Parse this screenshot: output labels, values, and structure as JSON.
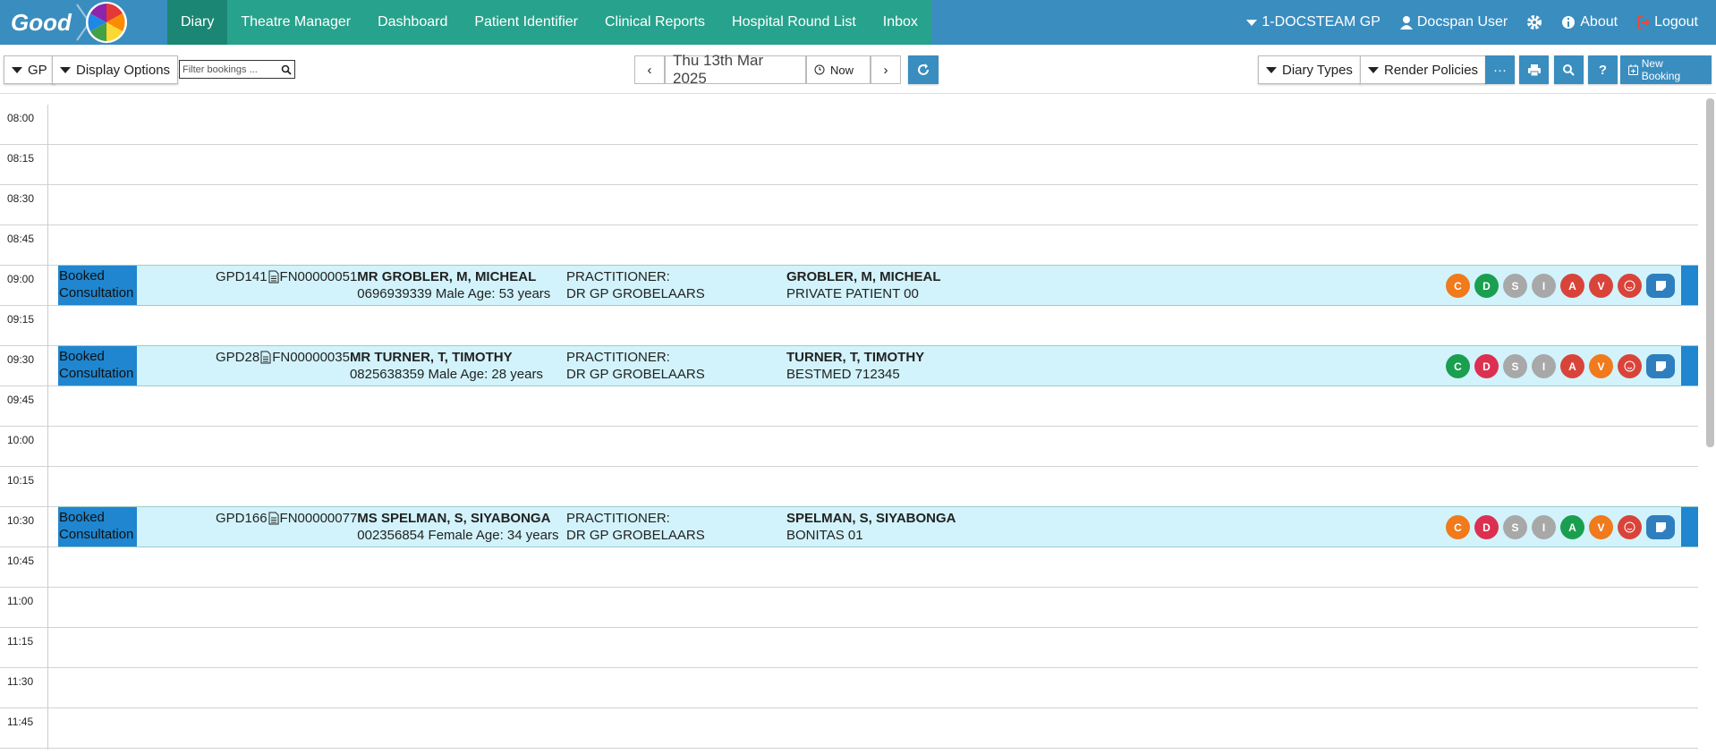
{
  "nav": {
    "logo": "Good",
    "tabs": [
      "Diary",
      "Theatre Manager",
      "Dashboard",
      "Patient Identifier",
      "Clinical Reports",
      "Hospital Round List",
      "Inbox"
    ],
    "practice": "1-DOCSTEAM GP",
    "user": "Docspan User",
    "about": "About",
    "logout": "Logout"
  },
  "toolbar": {
    "gp": "GP",
    "display_options": "Display Options",
    "filter_placeholder": "Filter bookings ...",
    "date": "Thu 13th Mar 2025",
    "now": "Now",
    "diary_types": "Diary Types",
    "render_policies": "Render Policies",
    "new_booking": "New Booking"
  },
  "diary": {
    "slots": [
      {
        "time": "08:00"
      },
      {
        "time": "08:15"
      },
      {
        "time": "08:30"
      },
      {
        "time": "08:45"
      },
      {
        "time": "09:00",
        "booking": {
          "status": "Booked Consultation",
          "ref": "GPD141",
          "file": "FN00000051",
          "name": "MR GROBLER, M, MICHEAL",
          "details": "0696939339 Male Age: 53 years",
          "practitioner_label": "PRACTITIONER:",
          "practitioner": "DR GP GROBELAARS",
          "patient": "GROBLER, M, MICHEAL",
          "medical_aid": "PRIVATE PATIENT 00",
          "actions": [
            {
              "letter": "C",
              "color": "#f07a1c"
            },
            {
              "letter": "D",
              "color": "#1a9f50"
            },
            {
              "letter": "S",
              "color": "#a8a8a8"
            },
            {
              "letter": "I",
              "color": "#a8a8a8"
            },
            {
              "letter": "A",
              "color": "#d9443a"
            },
            {
              "letter": "V",
              "color": "#d9443a"
            }
          ]
        }
      },
      {
        "time": "09:15"
      },
      {
        "time": "09:30",
        "booking": {
          "status": "Booked Consultation",
          "ref": "GPD28",
          "file": "FN00000035",
          "name": "MR TURNER, T, TIMOTHY",
          "details": "0825638359 Male Age: 28 years",
          "practitioner_label": "PRACTITIONER:",
          "practitioner": "DR GP GROBELAARS",
          "patient": "TURNER, T, TIMOTHY",
          "medical_aid": "BESTMED 712345",
          "actions": [
            {
              "letter": "C",
              "color": "#1a9f50"
            },
            {
              "letter": "D",
              "color": "#dc3050"
            },
            {
              "letter": "S",
              "color": "#a8a8a8"
            },
            {
              "letter": "I",
              "color": "#a8a8a8"
            },
            {
              "letter": "A",
              "color": "#d9443a"
            },
            {
              "letter": "V",
              "color": "#f07a1c"
            }
          ]
        }
      },
      {
        "time": "09:45"
      },
      {
        "time": "10:00"
      },
      {
        "time": "10:15"
      },
      {
        "time": "10:30",
        "booking": {
          "status": "Booked Consultation",
          "ref": "GPD166",
          "file": "FN00000077",
          "name": "MS SPELMAN, S, SIYABONGA",
          "details": "002356854 Female Age: 34 years",
          "practitioner_label": "PRACTITIONER:",
          "practitioner": "DR GP GROBELAARS",
          "patient": "SPELMAN, S, SIYABONGA",
          "medical_aid": "BONITAS 01",
          "actions": [
            {
              "letter": "C",
              "color": "#f07a1c"
            },
            {
              "letter": "D",
              "color": "#dc3050"
            },
            {
              "letter": "S",
              "color": "#a8a8a8"
            },
            {
              "letter": "I",
              "color": "#a8a8a8"
            },
            {
              "letter": "A",
              "color": "#1a9f50"
            },
            {
              "letter": "V",
              "color": "#f07a1c"
            }
          ]
        }
      },
      {
        "time": "10:45"
      },
      {
        "time": "11:00"
      },
      {
        "time": "11:15"
      },
      {
        "time": "11:30"
      },
      {
        "time": "11:45"
      }
    ]
  }
}
